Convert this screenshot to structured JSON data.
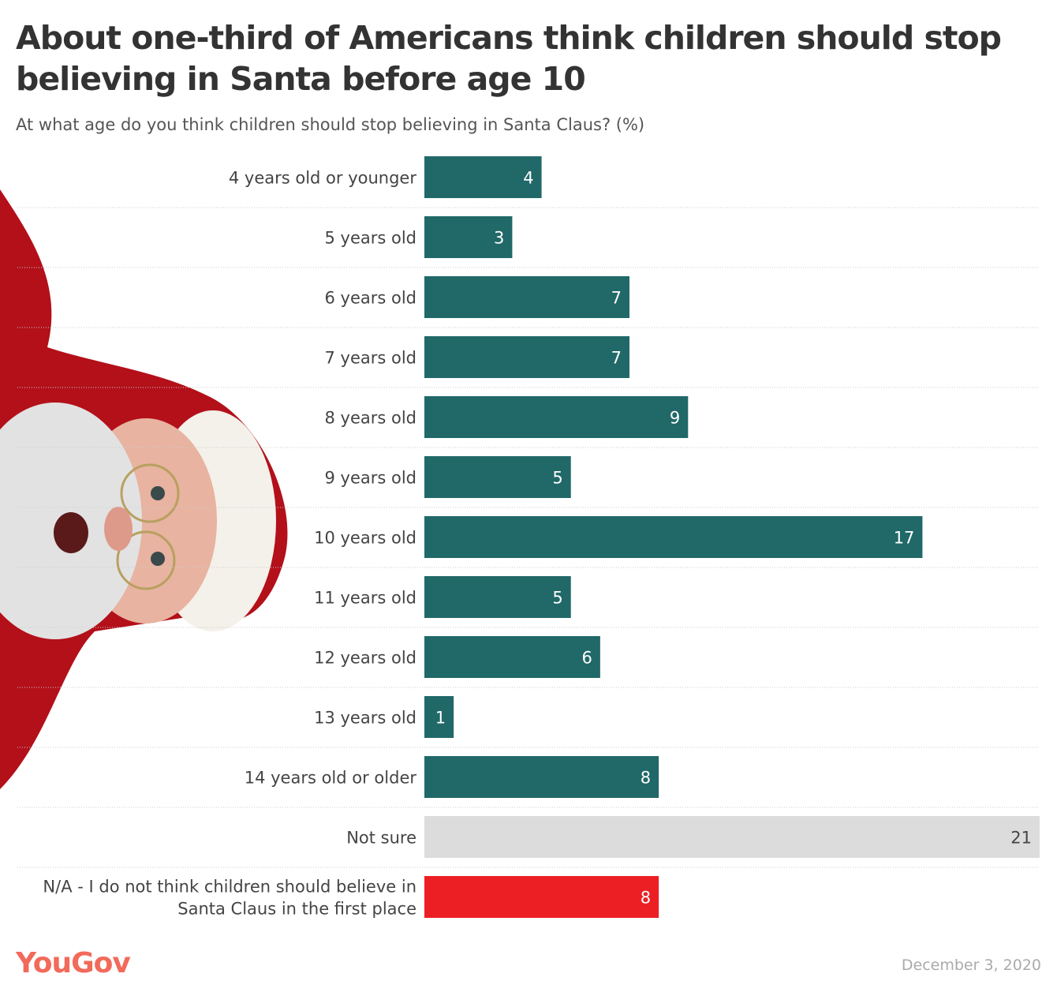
{
  "title": "About one-third of Americans think children should stop believing in Santa before age 10",
  "subtitle": "At what age do you think children should stop believing in Santa Claus? (%)",
  "logo": "YouGov",
  "date": "December 3, 2020",
  "chart_data": {
    "type": "bar",
    "orientation": "horizontal",
    "title": "About one-third of Americans think children should stop believing in Santa before age 10",
    "subtitle": "At what age do you think children should stop believing in Santa Claus? (%)",
    "xlim": [
      0,
      21
    ],
    "grid": false,
    "categories": [
      "4 years old or younger",
      "5 years old",
      "6 years old",
      "7 years old",
      "8 years old",
      "9 years old",
      "10 years old",
      "11 years old",
      "12 years old",
      "13 years old",
      "14 years old or older",
      "Not sure",
      "N/A - I do not think children should believe in Santa Claus in the first place"
    ],
    "values": [
      4,
      3,
      7,
      7,
      9,
      5,
      17,
      5,
      6,
      1,
      8,
      21,
      8
    ],
    "colors": [
      "#216868",
      "#216868",
      "#216868",
      "#216868",
      "#216868",
      "#216868",
      "#216868",
      "#216868",
      "#216868",
      "#216868",
      "#216868",
      "#dcdcdc",
      "#ec2024"
    ]
  }
}
